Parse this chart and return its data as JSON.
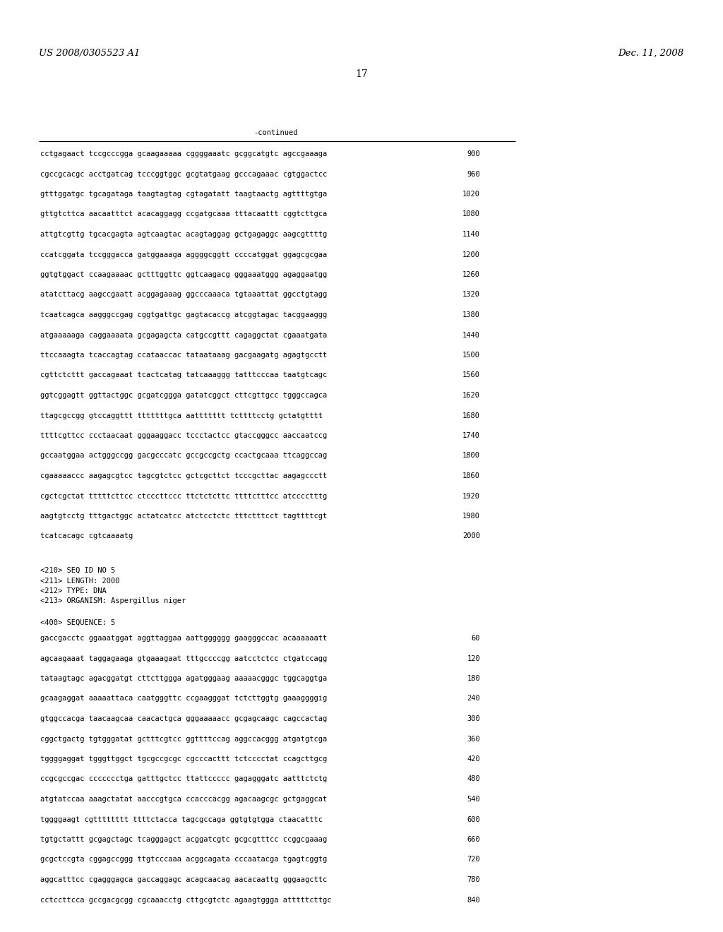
{
  "header_left": "US 2008/0305523 A1",
  "header_right": "Dec. 11, 2008",
  "page_number": "17",
  "continued_label": "-continued",
  "background_color": "#ffffff",
  "text_color": "#000000",
  "mono_font_size": 7.5,
  "header_font_size": 9.5,
  "page_num_font_size": 10.0,
  "continued_lines": [
    [
      "cctgagaact tccgcccgga gcaagaaaaa cggggaaatc gcggcatgtc agccgaaaga",
      "900"
    ],
    [
      "cgccgcacgc acctgatcag tcccggtggc gcgtatgaag gcccagaaac cgtggactcc",
      "960"
    ],
    [
      "gtttggatgc tgcagataga taagtagtag cgtagatatt taagtaactg agttttgtga",
      "1020"
    ],
    [
      "gttgtcttca aacaatttct acacaggagg ccgatgcaaa tttacaattt cggtcttgca",
      "1080"
    ],
    [
      "attgtcgttg tgcacgagta agtcaagtac acagtaggag gctgagaggc aagcgttttg",
      "1140"
    ],
    [
      "ccatcggata tccgggacca gatggaaaga aggggcggtt ccccatggat ggagcgcgaa",
      "1200"
    ],
    [
      "ggtgtggact ccaagaaaac gctttggttc ggtcaagacg gggaaatggg agaggaatgg",
      "1260"
    ],
    [
      "atatcttacg aagccgaatt acggagaaag ggcccaaaca tgtaaattat ggcctgtagg",
      "1320"
    ],
    [
      "tcaatcagca aagggccgag cggtgattgc gagtacaccg atcggtagac tacggaaggg",
      "1380"
    ],
    [
      "atgaaaaaga caggaaaata gcgagagcta catgccgttt cagaggctat cgaaatgata",
      "1440"
    ],
    [
      "ttccaaagta tcaccagtag ccataaccac tataataaag gacgaagatg agagtgcctt",
      "1500"
    ],
    [
      "cgttctcttt gaccagaaat tcactcatag tatcaaaggg tatttcccaa taatgtcagc",
      "1560"
    ],
    [
      "ggtcggagtt ggttactggc gcgatcggga gatatcggct cttcgttgcc tgggccagca",
      "1620"
    ],
    [
      "ttagcgccgg gtccaggttt tttttttgca aattttttt tcttttcctg gctatgtttt",
      "1680"
    ],
    [
      "ttttcgttcc ccctaacaat gggaaggacc tccctactcc gtaccgggcc aaccaatccg",
      "1740"
    ],
    [
      "gccaatggaa actgggccgg gacgcccatc gccgccgctg ccactgcaaa ttcaggccag",
      "1800"
    ],
    [
      "cgaaaaaccc aagagcgtcc tagcgtctcc gctcgcttct tcccgcttac aagagccctt",
      "1860"
    ],
    [
      "cgctcgctat tttttcttcc ctcccttccc ttctctcttc ttttctttcc atcccctttg",
      "1920"
    ],
    [
      "aagtgtcctg tttgactggc actatcatcc atctcctctc tttctttcct tagttttcgt",
      "1980"
    ],
    [
      "tcatcacagc cgtcaaaatg",
      "2000"
    ]
  ],
  "metadata_lines": [
    "<210> SEQ ID NO 5",
    "<211> LENGTH: 2000",
    "<212> TYPE: DNA",
    "<213> ORGANISM: Aspergillus niger"
  ],
  "sequence_header": "<400> SEQUENCE: 5",
  "sequence_lines": [
    [
      "gaccgacctc ggaaatggat aggttaggaa aattgggggg gaagggccac acaaaaaatt",
      "60"
    ],
    [
      "agcaagaaat taggagaaga gtgaaagaat tttgccccgg aatcctctcc ctgatccagg",
      "120"
    ],
    [
      "tataagtagc agacggatgt cttcttggga agatgggaag aaaaacgggc tggcaggtga",
      "180"
    ],
    [
      "gcaagaggat aaaaattaca caatgggttc ccgaagggat tctcttggtg gaaaggggig",
      "240"
    ],
    [
      "gtggccacga taacaagcaa caacactgca gggaaaaacc gcgagcaagc cagccactag",
      "300"
    ],
    [
      "cggctgactg tgtgggatat gctttcgtcc ggttttccag aggccacggg atgatgtcga",
      "360"
    ],
    [
      "tggggaggat tgggttggct tgcgccgcgc cgcccacttt tctcccctat ccagcttgcg",
      "420"
    ],
    [
      "ccgcgccgac ccccccctga gatttgctcc ttattccccc gagagggatc aatttctctg",
      "480"
    ],
    [
      "atgtatccaa aaagctatat aacccgtgca ccacccacgg agacaagcgc gctgaggcat",
      "540"
    ],
    [
      "tggggaagt cgtttttttt ttttctacca tagcgccaga ggtgtgtgga ctaacatttc",
      "600"
    ],
    [
      "tgtgctattt gcgagctagc tcagggagct acggatcgtc gcgcgtttcc ccggcgaaag",
      "660"
    ],
    [
      "gcgctccgta cggagccggg ttgtcccaaa acggcagata cccaatacga tgagtcggtg",
      "720"
    ],
    [
      "aggcatttcc cgagggagca gaccaggagc acagcaacag aacacaattg gggaagcttc",
      "780"
    ],
    [
      "cctccttcca gccgacgcgg cgcaaacctg cttgcgtctc agaagtggga atttttcttgc",
      "840"
    ]
  ]
}
